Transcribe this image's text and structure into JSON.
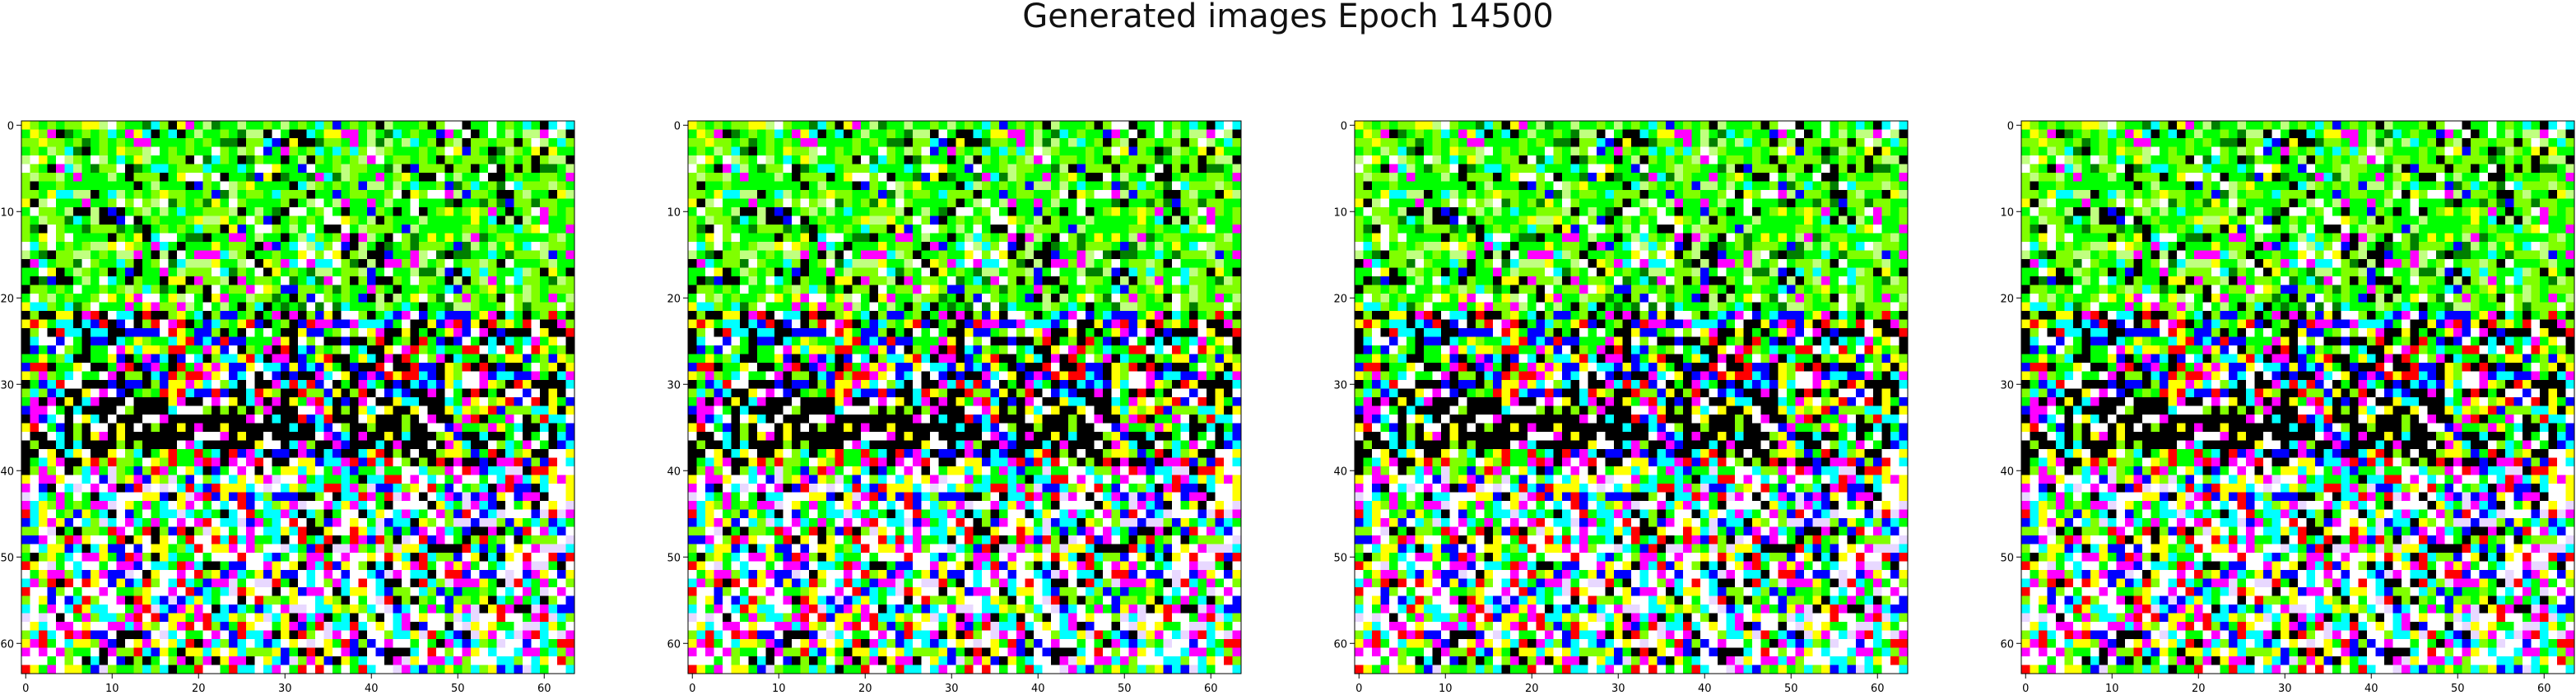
{
  "figure": {
    "title": "Generated images Epoch 14500"
  },
  "chart_data": [
    {
      "type": "heatmap",
      "title": "",
      "xlabel": "",
      "ylabel": "",
      "xlim": [
        0,
        63
      ],
      "ylim": [
        63,
        0
      ],
      "grid_size": 64,
      "x_ticks": [
        0,
        10,
        20,
        30,
        40,
        50,
        60
      ],
      "y_ticks": [
        0,
        10,
        20,
        30,
        40,
        50,
        60
      ],
      "palette": [
        "#00ff00",
        "#80ff00",
        "#ffffff",
        "#000000",
        "#ff0000",
        "#0000ff",
        "#00ffff",
        "#ff00ff",
        "#ffff00",
        "#c0ff80",
        "#e8d8ff",
        "#008000"
      ],
      "grid": false
    },
    {
      "type": "heatmap",
      "title": "",
      "xlabel": "",
      "ylabel": "",
      "xlim": [
        0,
        63
      ],
      "ylim": [
        63,
        0
      ],
      "grid_size": 64,
      "x_ticks": [
        0,
        10,
        20,
        30,
        40,
        50,
        60
      ],
      "y_ticks": [
        0,
        10,
        20,
        30,
        40,
        50,
        60
      ],
      "palette": [
        "#00ff00",
        "#80ff00",
        "#ffffff",
        "#000000",
        "#ff0000",
        "#0000ff",
        "#00ffff",
        "#ff00ff",
        "#ffff00",
        "#c0ff80",
        "#e8d8ff",
        "#008000"
      ],
      "grid": false
    },
    {
      "type": "heatmap",
      "title": "",
      "xlabel": "",
      "ylabel": "",
      "xlim": [
        0,
        63
      ],
      "ylim": [
        63,
        0
      ],
      "grid_size": 64,
      "x_ticks": [
        0,
        10,
        20,
        30,
        40,
        50,
        60
      ],
      "y_ticks": [
        0,
        10,
        20,
        30,
        40,
        50,
        60
      ],
      "palette": [
        "#00ff00",
        "#80ff00",
        "#ffffff",
        "#000000",
        "#ff0000",
        "#0000ff",
        "#00ffff",
        "#ff00ff",
        "#ffff00",
        "#c0ff80",
        "#e8d8ff",
        "#008000"
      ],
      "grid": false
    },
    {
      "type": "heatmap",
      "title": "",
      "xlabel": "",
      "ylabel": "",
      "xlim": [
        0,
        63
      ],
      "ylim": [
        63,
        0
      ],
      "grid_size": 64,
      "x_ticks": [
        0,
        10,
        20,
        30,
        40,
        50,
        60
      ],
      "y_ticks": [
        0,
        10,
        20,
        30,
        40,
        50,
        60
      ],
      "palette": [
        "#00ff00",
        "#80ff00",
        "#ffffff",
        "#000000",
        "#ff0000",
        "#0000ff",
        "#00ffff",
        "#ff00ff",
        "#ffff00",
        "#c0ff80",
        "#e8d8ff",
        "#008000"
      ],
      "grid": false
    }
  ]
}
